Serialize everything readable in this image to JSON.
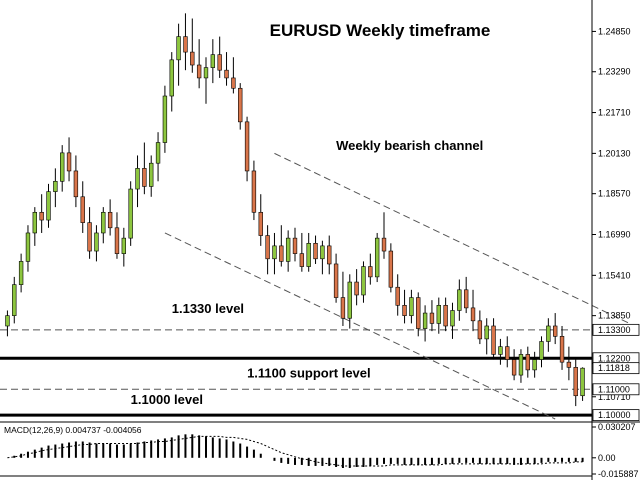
{
  "chart_data": {
    "type": "candlestick",
    "title": "EURUSD Weekly timeframe",
    "colors": {
      "bull": "#8dc63f",
      "bear": "#d9754a",
      "wick": "#000000",
      "level_line": "#000000",
      "dashed_line": "#555555",
      "macd_bar": "#000000",
      "macd_signal": "#000000"
    },
    "price_axis": {
      "range": [
        1.0985,
        1.2595
      ],
      "tick_labels": [
        "1.24850",
        "1.23290",
        "1.21710",
        "1.20130",
        "1.18570",
        "1.16990",
        "1.15410",
        "1.13850",
        "1.10710"
      ],
      "tick_values": [
        1.2485,
        1.2329,
        1.2171,
        1.2013,
        1.1857,
        1.1699,
        1.1541,
        1.1385,
        1.1071
      ],
      "badges": [
        {
          "label": "1.13300",
          "value": 1.133
        },
        {
          "label": "1.12200",
          "value": 1.122
        },
        {
          "label": "1.11818",
          "value": 1.11818
        },
        {
          "label": "1.11000",
          "value": 1.11
        },
        {
          "label": "1.10000",
          "value": 1.1
        }
      ]
    },
    "levels": [
      {
        "value": 1.133,
        "style": "dashed"
      },
      {
        "value": 1.122,
        "style": "solid"
      },
      {
        "value": 1.11,
        "style": "dashed"
      },
      {
        "value": 1.1,
        "style": "solid"
      }
    ],
    "annotations": [
      {
        "text": "Weekly bearish channel",
        "anchor_bar": 48,
        "price": 1.2027
      },
      {
        "text": "1.1330 level",
        "anchor_bar": 24,
        "price": 1.1395
      },
      {
        "text": "1.1100 support level",
        "anchor_bar": 35,
        "price": 1.1146
      },
      {
        "text": "1.1000 level",
        "anchor_bar": 18,
        "price": 1.1044
      }
    ],
    "channel": {
      "upper": [
        {
          "bar": 39,
          "price": 1.2013
        },
        {
          "bar": 94,
          "price": 1.1315
        }
      ],
      "lower": [
        {
          "bar": 23,
          "price": 1.1705
        },
        {
          "bar": 80,
          "price": 1.0985
        }
      ]
    },
    "candles": [
      [
        1.1345,
        1.1405,
        1.1305,
        1.1385
      ],
      [
        1.1385,
        1.1535,
        1.1355,
        1.1505
      ],
      [
        1.1505,
        1.1625,
        1.1475,
        1.1595
      ],
      [
        1.1595,
        1.1735,
        1.1555,
        1.1705
      ],
      [
        1.1705,
        1.1805,
        1.1655,
        1.1785
      ],
      [
        1.1785,
        1.1855,
        1.1705,
        1.1755
      ],
      [
        1.1755,
        1.1895,
        1.1725,
        1.1865
      ],
      [
        1.1865,
        1.1955,
        1.1805,
        1.1905
      ],
      [
        1.1905,
        1.2045,
        1.1865,
        1.2015
      ],
      [
        1.2015,
        1.2075,
        1.1905,
        1.1945
      ],
      [
        1.1945,
        1.2005,
        1.1805,
        1.1845
      ],
      [
        1.1845,
        1.1905,
        1.1705,
        1.1745
      ],
      [
        1.1745,
        1.1805,
        1.1605,
        1.1635
      ],
      [
        1.1635,
        1.1735,
        1.1595,
        1.1705
      ],
      [
        1.1705,
        1.1805,
        1.1665,
        1.1785
      ],
      [
        1.1785,
        1.1835,
        1.1695,
        1.1725
      ],
      [
        1.1725,
        1.1785,
        1.1605,
        1.1625
      ],
      [
        1.1625,
        1.1725,
        1.1575,
        1.1685
      ],
      [
        1.1685,
        1.1905,
        1.1655,
        1.1875
      ],
      [
        1.1875,
        1.2005,
        1.1805,
        1.1955
      ],
      [
        1.1955,
        1.2055,
        1.1855,
        1.1885
      ],
      [
        1.1885,
        1.2005,
        1.1845,
        1.1975
      ],
      [
        1.1975,
        1.2095,
        1.1905,
        1.2055
      ],
      [
        1.2055,
        1.2275,
        1.2015,
        1.2235
      ],
      [
        1.2235,
        1.2405,
        1.2175,
        1.2375
      ],
      [
        1.2375,
        1.2515,
        1.2275,
        1.2465
      ],
      [
        1.2465,
        1.2555,
        1.2335,
        1.2405
      ],
      [
        1.2405,
        1.2535,
        1.2325,
        1.2355
      ],
      [
        1.2355,
        1.2455,
        1.2265,
        1.2305
      ],
      [
        1.2305,
        1.2385,
        1.2205,
        1.2345
      ],
      [
        1.2345,
        1.2455,
        1.2285,
        1.2395
      ],
      [
        1.2395,
        1.2465,
        1.2305,
        1.2335
      ],
      [
        1.2335,
        1.2405,
        1.2275,
        1.2305
      ],
      [
        1.2305,
        1.2385,
        1.2245,
        1.2265
      ],
      [
        1.2265,
        1.2285,
        1.2105,
        1.2135
      ],
      [
        1.2135,
        1.2155,
        1.1905,
        1.1945
      ],
      [
        1.1945,
        1.1985,
        1.1755,
        1.1785
      ],
      [
        1.1785,
        1.1855,
        1.1655,
        1.1695
      ],
      [
        1.1695,
        1.1735,
        1.1545,
        1.1605
      ],
      [
        1.1605,
        1.1705,
        1.1545,
        1.1655
      ],
      [
        1.1655,
        1.1735,
        1.1575,
        1.1595
      ],
      [
        1.1595,
        1.1715,
        1.1555,
        1.1685
      ],
      [
        1.1685,
        1.1725,
        1.1595,
        1.1625
      ],
      [
        1.1625,
        1.1705,
        1.1555,
        1.1575
      ],
      [
        1.1575,
        1.1705,
        1.1555,
        1.1665
      ],
      [
        1.1665,
        1.1695,
        1.1585,
        1.1605
      ],
      [
        1.1605,
        1.1675,
        1.1545,
        1.1655
      ],
      [
        1.1655,
        1.1695,
        1.1545,
        1.1585
      ],
      [
        1.1585,
        1.1625,
        1.1435,
        1.1455
      ],
      [
        1.1455,
        1.1555,
        1.1345,
        1.1375
      ],
      [
        1.1375,
        1.1545,
        1.1335,
        1.1515
      ],
      [
        1.1515,
        1.1565,
        1.1425,
        1.1465
      ],
      [
        1.1465,
        1.1595,
        1.1435,
        1.1575
      ],
      [
        1.1575,
        1.1625,
        1.1505,
        1.1535
      ],
      [
        1.1535,
        1.1705,
        1.1515,
        1.1685
      ],
      [
        1.1685,
        1.1785,
        1.1605,
        1.1635
      ],
      [
        1.1635,
        1.1665,
        1.1475,
        1.1495
      ],
      [
        1.1495,
        1.1545,
        1.1385,
        1.1425
      ],
      [
        1.1425,
        1.1485,
        1.1355,
        1.1385
      ],
      [
        1.1385,
        1.1485,
        1.1355,
        1.1455
      ],
      [
        1.1455,
        1.1475,
        1.1305,
        1.1335
      ],
      [
        1.1335,
        1.1425,
        1.1285,
        1.1395
      ],
      [
        1.1395,
        1.1445,
        1.1325,
        1.1355
      ],
      [
        1.1355,
        1.1455,
        1.1315,
        1.1425
      ],
      [
        1.1425,
        1.1455,
        1.1325,
        1.1345
      ],
      [
        1.1345,
        1.1435,
        1.1295,
        1.1405
      ],
      [
        1.1405,
        1.1525,
        1.1365,
        1.1485
      ],
      [
        1.1485,
        1.1535,
        1.1395,
        1.1415
      ],
      [
        1.1415,
        1.1485,
        1.1325,
        1.1365
      ],
      [
        1.1365,
        1.1405,
        1.1275,
        1.1295
      ],
      [
        1.1295,
        1.1375,
        1.1235,
        1.1345
      ],
      [
        1.1345,
        1.1375,
        1.1215,
        1.1235
      ],
      [
        1.1235,
        1.1295,
        1.1195,
        1.1265
      ],
      [
        1.1265,
        1.1305,
        1.1185,
        1.1215
      ],
      [
        1.1215,
        1.1255,
        1.1135,
        1.1155
      ],
      [
        1.1155,
        1.1255,
        1.1125,
        1.1235
      ],
      [
        1.1235,
        1.1265,
        1.1145,
        1.1175
      ],
      [
        1.1175,
        1.1245,
        1.1145,
        1.1215
      ],
      [
        1.1215,
        1.1305,
        1.1185,
        1.1285
      ],
      [
        1.1285,
        1.1375,
        1.1245,
        1.1345
      ],
      [
        1.1345,
        1.1395,
        1.1275,
        1.1305
      ],
      [
        1.1305,
        1.1345,
        1.1175,
        1.1205
      ],
      [
        1.1205,
        1.1265,
        1.1135,
        1.1185
      ],
      [
        1.1185,
        1.1215,
        1.1035,
        1.1075
      ],
      [
        1.1075,
        1.1185,
        1.1055,
        1.11818
      ]
    ],
    "macd": {
      "label": "MACD(12,26,9) 0.004737 -0.004056",
      "value": 0.004737,
      "signal_value": -0.004056,
      "tick_labels": [
        "0.030207",
        "0.00",
        "-0.015887"
      ],
      "tick_values": [
        0.030207,
        0.0,
        -0.015887
      ],
      "histogram": [
        0.0,
        0.002,
        0.004,
        0.006,
        0.008,
        0.01,
        0.012,
        0.013,
        0.014,
        0.015,
        0.016,
        0.016,
        0.015,
        0.014,
        0.014,
        0.014,
        0.013,
        0.013,
        0.014,
        0.015,
        0.016,
        0.017,
        0.018,
        0.019,
        0.02,
        0.022,
        0.023,
        0.023,
        0.022,
        0.021,
        0.02,
        0.019,
        0.018,
        0.016,
        0.014,
        0.011,
        0.008,
        0.004,
        0.0,
        -0.003,
        -0.005,
        -0.006,
        -0.007,
        -0.007,
        -0.008,
        -0.008,
        -0.008,
        -0.008,
        -0.009,
        -0.01,
        -0.01,
        -0.009,
        -0.009,
        -0.008,
        -0.007,
        -0.006,
        -0.006,
        -0.006,
        -0.007,
        -0.007,
        -0.007,
        -0.007,
        -0.007,
        -0.006,
        -0.006,
        -0.006,
        -0.005,
        -0.005,
        -0.005,
        -0.006,
        -0.006,
        -0.006,
        -0.006,
        -0.006,
        -0.007,
        -0.007,
        -0.006,
        -0.006,
        -0.005,
        -0.004,
        -0.004,
        -0.004,
        -0.004,
        -0.004,
        -0.004
      ],
      "signal": [
        0.0,
        0.001,
        0.002,
        0.004,
        0.005,
        0.007,
        0.008,
        0.009,
        0.01,
        0.011,
        0.012,
        0.013,
        0.013,
        0.014,
        0.014,
        0.014,
        0.014,
        0.014,
        0.014,
        0.014,
        0.015,
        0.015,
        0.016,
        0.016,
        0.017,
        0.018,
        0.019,
        0.02,
        0.021,
        0.021,
        0.021,
        0.021,
        0.02,
        0.02,
        0.019,
        0.018,
        0.016,
        0.014,
        0.011,
        0.008,
        0.005,
        0.003,
        0.001,
        -0.001,
        -0.002,
        -0.004,
        -0.005,
        -0.006,
        -0.007,
        -0.008,
        -0.008,
        -0.008,
        -0.008,
        -0.008,
        -0.008,
        -0.008,
        -0.007,
        -0.007,
        -0.007,
        -0.007,
        -0.007,
        -0.007,
        -0.007,
        -0.007,
        -0.006,
        -0.006,
        -0.006,
        -0.006,
        -0.006,
        -0.006,
        -0.006,
        -0.006,
        -0.006,
        -0.006,
        -0.006,
        -0.006,
        -0.006,
        -0.006,
        -0.006,
        -0.005,
        -0.005,
        -0.005,
        -0.005,
        -0.004,
        -0.004
      ]
    }
  }
}
